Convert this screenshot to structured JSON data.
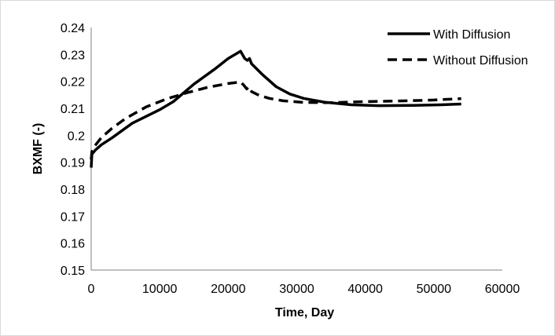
{
  "chart_data": {
    "type": "line",
    "xlabel": "Time, Day",
    "ylabel": "BXMF (-)",
    "xlim": [
      0,
      60000
    ],
    "ylim": [
      0.15,
      0.24
    ],
    "x_ticks": [
      "0",
      "10000",
      "20000",
      "30000",
      "40000",
      "50000",
      "60000"
    ],
    "y_ticks": [
      "0.15",
      "0.16",
      "0.17",
      "0.18",
      "0.19",
      "0.2",
      "0.21",
      "0.22",
      "0.23",
      "0.24"
    ],
    "grid": false,
    "legend_position": "top-right",
    "series": [
      {
        "name": "With Diffusion",
        "style": "solid",
        "color": "#000000",
        "points": [
          [
            0,
            0.188
          ],
          [
            100,
            0.193
          ],
          [
            600,
            0.1945
          ],
          [
            1500,
            0.1965
          ],
          [
            3000,
            0.199
          ],
          [
            6000,
            0.2045
          ],
          [
            10000,
            0.2095
          ],
          [
            12000,
            0.2125
          ],
          [
            15000,
            0.219
          ],
          [
            18000,
            0.2245
          ],
          [
            20000,
            0.2285
          ],
          [
            21800,
            0.2312
          ],
          [
            22400,
            0.2285
          ],
          [
            22800,
            0.2278
          ],
          [
            23100,
            0.2285
          ],
          [
            23400,
            0.2265
          ],
          [
            25000,
            0.2225
          ],
          [
            27000,
            0.218
          ],
          [
            29000,
            0.2153
          ],
          [
            31000,
            0.2137
          ],
          [
            34000,
            0.2123
          ],
          [
            38000,
            0.2113
          ],
          [
            42000,
            0.211
          ],
          [
            47000,
            0.2111
          ],
          [
            51000,
            0.2113
          ],
          [
            54000,
            0.2116
          ]
        ]
      },
      {
        "name": "Without Diffusion",
        "style": "dashed",
        "color": "#000000",
        "points": [
          [
            0,
            0.191
          ],
          [
            100,
            0.194
          ],
          [
            500,
            0.196
          ],
          [
            1500,
            0.1992
          ],
          [
            3000,
            0.2025
          ],
          [
            5000,
            0.2062
          ],
          [
            8000,
            0.2105
          ],
          [
            11000,
            0.2135
          ],
          [
            14000,
            0.2158
          ],
          [
            17000,
            0.2178
          ],
          [
            20000,
            0.2192
          ],
          [
            21800,
            0.2198
          ],
          [
            22300,
            0.2185
          ],
          [
            22700,
            0.2172
          ],
          [
            23000,
            0.218
          ],
          [
            23400,
            0.2162
          ],
          [
            24500,
            0.2148
          ],
          [
            26000,
            0.2137
          ],
          [
            28000,
            0.2128
          ],
          [
            31000,
            0.2122
          ],
          [
            35000,
            0.2121
          ],
          [
            40000,
            0.2125
          ],
          [
            46000,
            0.2128
          ],
          [
            50000,
            0.2131
          ],
          [
            54000,
            0.2136
          ]
        ]
      }
    ]
  }
}
